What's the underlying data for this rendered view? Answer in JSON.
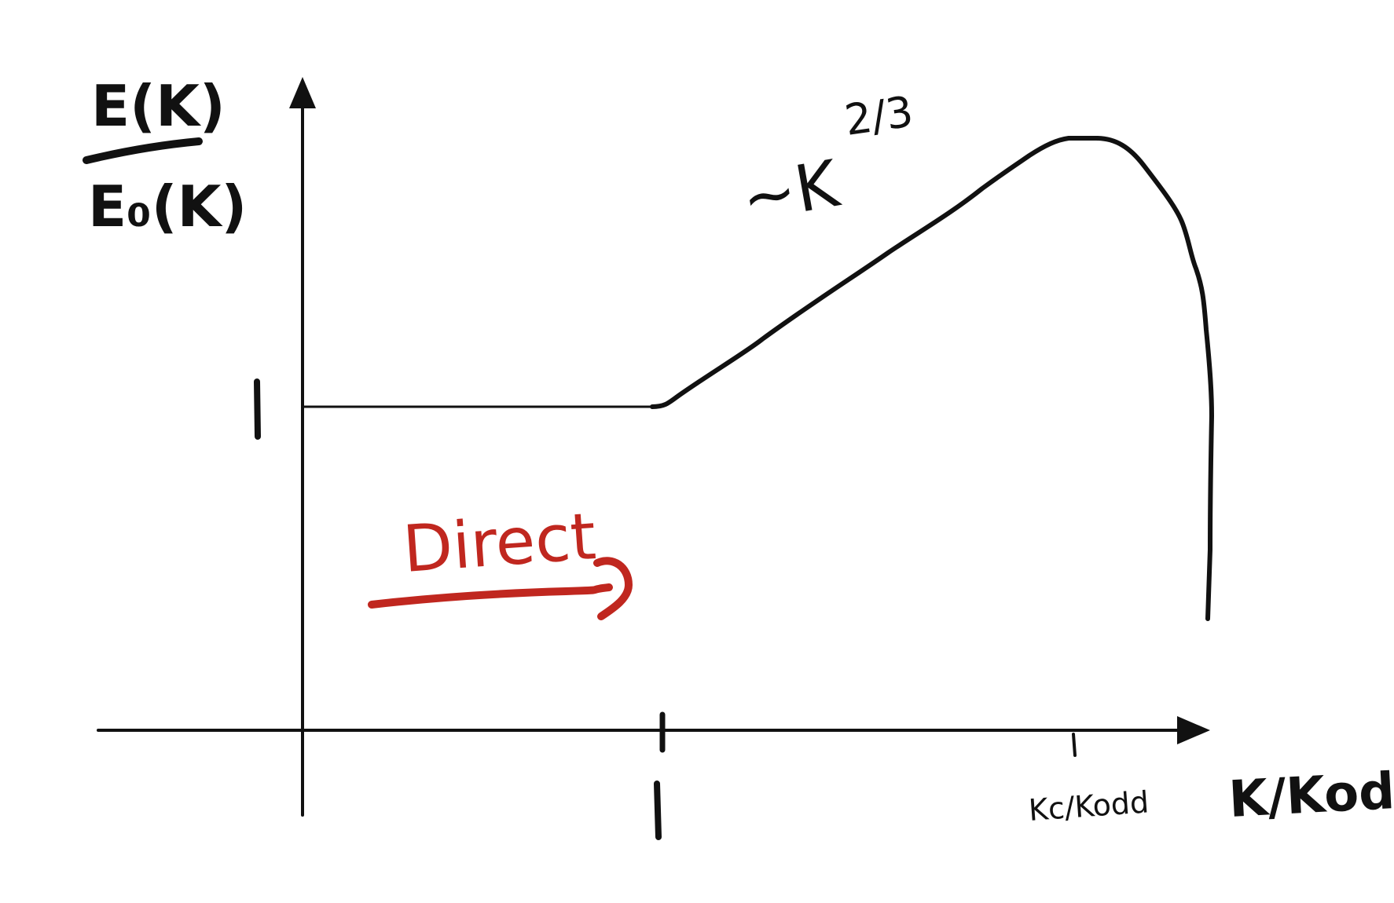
{
  "y_label": {
    "numerator": "E(K)",
    "denominator": "E₀(K)"
  },
  "y_tick_label": "1",
  "x_tick_label": "1",
  "x_label": "K/Kodd",
  "kc_label": "Kc/Kodd",
  "slope_label": {
    "prefix": "~K",
    "exponent": "2/3"
  },
  "direction_label": "Direct",
  "colors": {
    "ink": "#111111",
    "annotation": "#c0271f"
  }
}
